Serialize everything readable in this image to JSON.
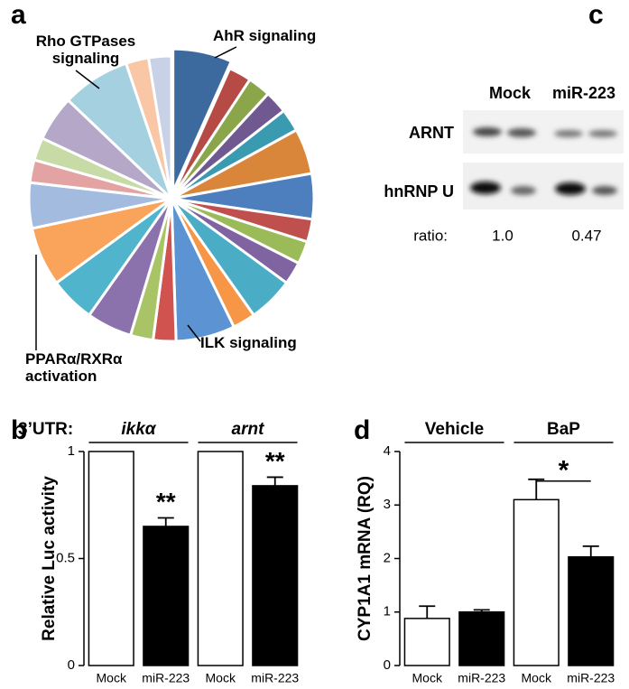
{
  "chart_data": [
    {
      "type": "pie",
      "panel": "a",
      "categories": [
        "AhR signaling",
        null,
        null,
        null,
        null,
        null,
        null,
        null,
        null,
        null,
        null,
        null,
        "ILK signaling",
        null,
        null,
        null,
        null,
        "PPARα/RXRα activation",
        null,
        null,
        null,
        null,
        "Rho GTPases signaling",
        null,
        null
      ],
      "values": [
        6.5,
        2.5,
        2.5,
        2.5,
        2.5,
        5,
        5,
        2.5,
        2.5,
        2.5,
        5,
        2.5,
        6.5,
        2.5,
        2.5,
        5,
        5,
        6.5,
        5,
        2.5,
        2.5,
        5,
        7.5,
        2.5,
        2.5
      ],
      "colors": [
        "#3d6a9e",
        "#b64a45",
        "#8aa54a",
        "#6f5990",
        "#3a9bb0",
        "#d9863a",
        "#4d7fbe",
        "#c0504d",
        "#9bbb59",
        "#8064a2",
        "#4bacc6",
        "#f79646",
        "#5b93d3",
        "#d0534f",
        "#a9c466",
        "#8c72ad",
        "#50b4cc",
        "#f9a45a",
        "#a4bbe0",
        "#e2a3a2",
        "#c8dba6",
        "#b5a7c8",
        "#a5d0e0",
        "#f9c6a6",
        "#c9d1e6"
      ]
    },
    {
      "type": "bar",
      "panel": "b",
      "ylabel": "Relative Luc activity",
      "group_title": "3’UTR:",
      "groups": [
        "ikkα",
        "arnt"
      ],
      "categories": [
        "Mock",
        "miR-223",
        "Mock",
        "miR-223"
      ],
      "values": [
        1,
        0.65,
        1,
        0.84
      ],
      "errors": [
        null,
        0.04,
        null,
        0.04
      ],
      "colors": [
        "#ffffff",
        "#000000",
        "#ffffff",
        "#000000"
      ],
      "bar_labels": [
        null,
        "**",
        null,
        "**"
      ],
      "ylim": [
        0,
        1
      ],
      "yticks": [
        0,
        0.5,
        1
      ]
    },
    {
      "type": "bar",
      "panel": "d",
      "ylabel": "CYP1A1 mRNA (RQ)",
      "groups": [
        "Vehicle",
        "BaP"
      ],
      "categories": [
        "Mock",
        "miR-223",
        "Mock",
        "miR-223"
      ],
      "values": [
        0.88,
        1.0,
        3.1,
        2.03
      ],
      "errors": [
        0.23,
        0.04,
        0.38,
        0.2
      ],
      "colors": [
        "#ffffff",
        "#000000",
        "#ffffff",
        "#000000"
      ],
      "comparison": "*",
      "ylim": [
        0,
        4
      ],
      "yticks": [
        0,
        1,
        2,
        3,
        4
      ]
    }
  ],
  "blot": {
    "panel": "c",
    "lanes": [
      "Mock",
      "miR-223"
    ],
    "rows": [
      "ARNT",
      "hnRNP U"
    ],
    "ratio_label": "ratio:",
    "ratios": [
      "1.0",
      "0.47"
    ]
  }
}
